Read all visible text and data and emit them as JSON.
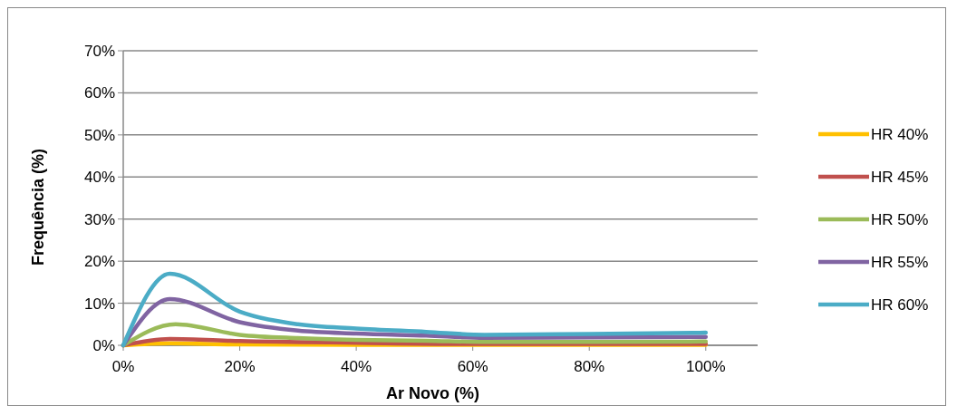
{
  "chart_data": {
    "type": "line",
    "xlabel": "Ar Novo (%)",
    "ylabel": "Frequência (%)",
    "xlim": [
      0,
      108.9
    ],
    "xticks": [
      {
        "value": 0,
        "label": "0%"
      },
      {
        "value": 20,
        "label": "20%"
      },
      {
        "value": 40,
        "label": "40%"
      },
      {
        "value": 60,
        "label": "60%"
      },
      {
        "value": 80,
        "label": "80%"
      },
      {
        "value": 100,
        "label": "100%"
      }
    ],
    "ylim": [
      0,
      70
    ],
    "yticks": [
      {
        "value": 0,
        "label": "0%"
      },
      {
        "value": 10,
        "label": "10%"
      },
      {
        "value": 20,
        "label": "20%"
      },
      {
        "value": 30,
        "label": "30%"
      },
      {
        "value": 40,
        "label": "40%"
      },
      {
        "value": 50,
        "label": "50%"
      },
      {
        "value": 60,
        "label": "60%"
      },
      {
        "value": 70,
        "label": "70%"
      }
    ],
    "grid": "y",
    "legend": "right",
    "line_style": "solid",
    "series": [
      {
        "name": "HR 40%",
        "color": "#ffc000",
        "x": [
          0,
          8,
          20,
          40,
          62,
          100
        ],
        "values": [
          0,
          0.5,
          0.2,
          0.1,
          0.1,
          0.1
        ]
      },
      {
        "name": "HR 45%",
        "color": "#c0504d",
        "x": [
          0,
          8,
          20,
          40,
          62,
          100
        ],
        "values": [
          0,
          1.5,
          1,
          0.6,
          0.3,
          0.3
        ]
      },
      {
        "name": "HR 50%",
        "color": "#9bbb59",
        "x": [
          0,
          9,
          20,
          30,
          40,
          52,
          62,
          80,
          100
        ],
        "values": [
          0,
          5,
          2.5,
          1.7,
          1.3,
          1.1,
          0.8,
          0.8,
          0.9
        ]
      },
      {
        "name": "HR 55%",
        "color": "#8064a2",
        "x": [
          0,
          8,
          20,
          30,
          40,
          52,
          62,
          80,
          100
        ],
        "values": [
          0,
          11,
          5.5,
          3.5,
          2.8,
          2.3,
          1.8,
          1.9,
          2
        ]
      },
      {
        "name": "HR 60%",
        "color": "#4bacc6",
        "x": [
          0,
          8,
          20,
          30,
          40,
          52,
          62,
          80,
          100
        ],
        "values": [
          0,
          17,
          8,
          5,
          4,
          3.2,
          2.5,
          2.7,
          3
        ]
      }
    ]
  }
}
